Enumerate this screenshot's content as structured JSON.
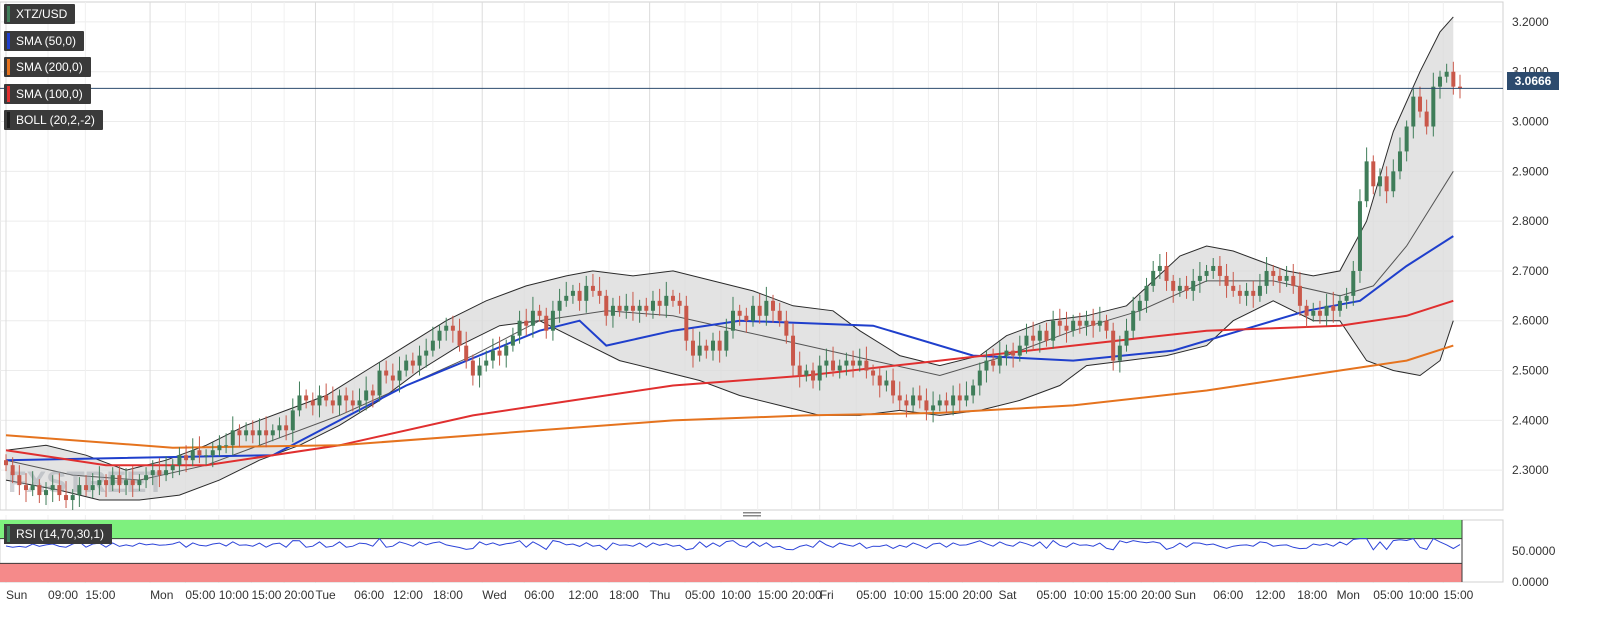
{
  "legend": [
    {
      "label": "XTZ/USD",
      "color": "#3f7d59"
    },
    {
      "label": "SMA (50,0)",
      "color": "#1f3fcc"
    },
    {
      "label": "SMA (200,0)",
      "color": "#e5731e"
    },
    {
      "label": "SMA (100,0)",
      "color": "#e02f2f"
    },
    {
      "label": "BOLL (20,2,-2)",
      "color": "#1a1a1a"
    }
  ],
  "rsi": {
    "label": "RSI (14,70,30,1)",
    "ticks": [
      "50.0000",
      "0.0000"
    ],
    "overbought": 70,
    "oversold": 30
  },
  "current_price": "3.0666",
  "chart_data": {
    "type": "candlestick",
    "symbol": "XTZ/USD",
    "ylim": [
      2.22,
      3.24
    ],
    "yticks": [
      "3.2000",
      "3.1000",
      "3.0000",
      "2.9000",
      "2.8000",
      "2.7000",
      "2.6000",
      "2.5000",
      "2.4000",
      "2.3000"
    ],
    "ytick_values": [
      3.2,
      3.1,
      3.0,
      2.9,
      2.8,
      2.7,
      2.6,
      2.5,
      2.4,
      2.3
    ],
    "x_labels": [
      "Sun",
      "09:00",
      "15:00",
      "Mon",
      "05:00",
      "10:00",
      "15:00",
      "20:00",
      "Tue",
      "06:00",
      "12:00",
      "18:00",
      "Wed",
      "06:00",
      "12:00",
      "18:00",
      "Thu",
      "05:00",
      "10:00",
      "15:00",
      "20:00",
      "Fri",
      "05:00",
      "10:00",
      "15:00",
      "20:00",
      "Sat",
      "05:00",
      "10:00",
      "15:00",
      "20:00",
      "Sun",
      "06:00",
      "12:00",
      "18:00",
      "Mon",
      "05:00",
      "10:00",
      "15:00"
    ],
    "x_label_pos": [
      0,
      6.3,
      11.9,
      21.6,
      26.9,
      31.9,
      36.8,
      41.7,
      46.4,
      52.2,
      58,
      64,
      71.4,
      77.7,
      84.3,
      90.4,
      96.5,
      101.8,
      107.2,
      112.7,
      117.8,
      122,
      127.5,
      133,
      138.3,
      143.4,
      148.8,
      154.5,
      160,
      165.1,
      170.2,
      175.2,
      181,
      187.3,
      193.6,
      199.5,
      205,
      210.3,
      215.5
    ],
    "closes": [
      2.31,
      2.29,
      2.27,
      2.26,
      2.27,
      2.25,
      2.26,
      2.27,
      2.25,
      2.24,
      2.25,
      2.27,
      2.26,
      2.27,
      2.28,
      2.27,
      2.29,
      2.27,
      2.28,
      2.27,
      2.28,
      2.29,
      2.3,
      2.29,
      2.3,
      2.31,
      2.33,
      2.32,
      2.34,
      2.33,
      2.33,
      2.34,
      2.35,
      2.35,
      2.38,
      2.37,
      2.38,
      2.37,
      2.38,
      2.37,
      2.38,
      2.39,
      2.38,
      2.42,
      2.45,
      2.44,
      2.43,
      2.45,
      2.44,
      2.43,
      2.45,
      2.44,
      2.43,
      2.44,
      2.46,
      2.45,
      2.5,
      2.49,
      2.48,
      2.5,
      2.52,
      2.51,
      2.53,
      2.54,
      2.56,
      2.58,
      2.59,
      2.58,
      2.55,
      2.52,
      2.49,
      2.51,
      2.52,
      2.54,
      2.53,
      2.55,
      2.57,
      2.6,
      2.59,
      2.62,
      2.61,
      2.58,
      2.62,
      2.64,
      2.65,
      2.66,
      2.64,
      2.67,
      2.66,
      2.65,
      2.61,
      2.63,
      2.62,
      2.63,
      2.62,
      2.63,
      2.62,
      2.64,
      2.63,
      2.65,
      2.64,
      2.63,
      2.56,
      2.53,
      2.55,
      2.54,
      2.56,
      2.54,
      2.58,
      2.62,
      2.61,
      2.6,
      2.63,
      2.61,
      2.64,
      2.62,
      2.6,
      2.57,
      2.51,
      2.49,
      2.5,
      2.48,
      2.51,
      2.52,
      2.5,
      2.51,
      2.52,
      2.51,
      2.52,
      2.5,
      2.49,
      2.47,
      2.48,
      2.45,
      2.44,
      2.43,
      2.45,
      2.44,
      2.42,
      2.43,
      2.44,
      2.43,
      2.45,
      2.44,
      2.45,
      2.47,
      2.5,
      2.52,
      2.51,
      2.53,
      2.54,
      2.53,
      2.55,
      2.57,
      2.56,
      2.58,
      2.56,
      2.6,
      2.59,
      2.58,
      2.6,
      2.59,
      2.6,
      2.59,
      2.6,
      2.58,
      2.52,
      2.55,
      2.58,
      2.62,
      2.64,
      2.67,
      2.7,
      2.71,
      2.68,
      2.66,
      2.67,
      2.66,
      2.68,
      2.69,
      2.7,
      2.71,
      2.69,
      2.67,
      2.66,
      2.65,
      2.66,
      2.65,
      2.67,
      2.7,
      2.69,
      2.68,
      2.69,
      2.67,
      2.63,
      2.61,
      2.62,
      2.61,
      2.63,
      2.62,
      2.64,
      2.65,
      2.7,
      2.84,
      2.92,
      2.87,
      2.89,
      2.86,
      2.9,
      2.94,
      2.99,
      3.05,
      3.02,
      2.99,
      3.07,
      3.09,
      3.1,
      3.07,
      3.0666
    ],
    "series": [
      {
        "name": "SMA (50,0)",
        "color": "#1f3fcc",
        "pts": [
          [
            0,
            2.32
          ],
          [
            40,
            2.33
          ],
          [
            60,
            2.47
          ],
          [
            80,
            2.58
          ],
          [
            86,
            2.6
          ],
          [
            90,
            2.55
          ],
          [
            100,
            2.58
          ],
          [
            110,
            2.6
          ],
          [
            130,
            2.59
          ],
          [
            145,
            2.53
          ],
          [
            160,
            2.52
          ],
          [
            175,
            2.54
          ],
          [
            185,
            2.58
          ],
          [
            195,
            2.62
          ],
          [
            203,
            2.64
          ],
          [
            210,
            2.71
          ],
          [
            217,
            2.77
          ]
        ]
      },
      {
        "name": "SMA (100,0)",
        "color": "#e02f2f",
        "pts": [
          [
            0,
            2.34
          ],
          [
            15,
            2.31
          ],
          [
            30,
            2.31
          ],
          [
            50,
            2.35
          ],
          [
            70,
            2.41
          ],
          [
            85,
            2.44
          ],
          [
            100,
            2.47
          ],
          [
            120,
            2.49
          ],
          [
            140,
            2.52
          ],
          [
            160,
            2.55
          ],
          [
            180,
            2.58
          ],
          [
            200,
            2.59
          ],
          [
            210,
            2.61
          ],
          [
            217,
            2.64
          ]
        ]
      },
      {
        "name": "SMA (200,0)",
        "color": "#e5731e",
        "pts": [
          [
            0,
            2.37
          ],
          [
            25,
            2.345
          ],
          [
            50,
            2.35
          ],
          [
            80,
            2.38
          ],
          [
            100,
            2.4
          ],
          [
            120,
            2.41
          ],
          [
            140,
            2.415
          ],
          [
            160,
            2.43
          ],
          [
            180,
            2.46
          ],
          [
            200,
            2.5
          ],
          [
            210,
            2.52
          ],
          [
            217,
            2.55
          ]
        ]
      },
      {
        "name": "BOLL (20,2,-2)",
        "color": "#2a2a2a",
        "upper": [
          [
            0,
            2.34
          ],
          [
            6,
            2.35
          ],
          [
            12,
            2.33
          ],
          [
            18,
            2.3
          ],
          [
            24,
            2.32
          ],
          [
            30,
            2.35
          ],
          [
            36,
            2.39
          ],
          [
            42,
            2.42
          ],
          [
            48,
            2.45
          ],
          [
            54,
            2.5
          ],
          [
            60,
            2.55
          ],
          [
            66,
            2.6
          ],
          [
            72,
            2.64
          ],
          [
            78,
            2.67
          ],
          [
            84,
            2.69
          ],
          [
            88,
            2.7
          ],
          [
            94,
            2.69
          ],
          [
            100,
            2.7
          ],
          [
            106,
            2.68
          ],
          [
            112,
            2.66
          ],
          [
            118,
            2.63
          ],
          [
            124,
            2.62
          ],
          [
            128,
            2.58
          ],
          [
            134,
            2.53
          ],
          [
            140,
            2.51
          ],
          [
            146,
            2.53
          ],
          [
            150,
            2.57
          ],
          [
            156,
            2.6
          ],
          [
            162,
            2.61
          ],
          [
            168,
            2.63
          ],
          [
            172,
            2.68
          ],
          [
            176,
            2.73
          ],
          [
            180,
            2.75
          ],
          [
            184,
            2.74
          ],
          [
            188,
            2.72
          ],
          [
            192,
            2.7
          ],
          [
            196,
            2.69
          ],
          [
            200,
            2.7
          ],
          [
            204,
            2.8
          ],
          [
            208,
            2.98
          ],
          [
            212,
            3.1
          ],
          [
            215,
            3.18
          ],
          [
            217,
            3.21
          ]
        ],
        "mid": [
          [
            0,
            2.32
          ],
          [
            10,
            2.29
          ],
          [
            20,
            2.28
          ],
          [
            30,
            2.31
          ],
          [
            40,
            2.36
          ],
          [
            50,
            2.41
          ],
          [
            60,
            2.47
          ],
          [
            70,
            2.53
          ],
          [
            80,
            2.6
          ],
          [
            90,
            2.62
          ],
          [
            100,
            2.61
          ],
          [
            110,
            2.58
          ],
          [
            120,
            2.55
          ],
          [
            130,
            2.52
          ],
          [
            140,
            2.49
          ],
          [
            150,
            2.53
          ],
          [
            160,
            2.58
          ],
          [
            170,
            2.62
          ],
          [
            180,
            2.68
          ],
          [
            190,
            2.68
          ],
          [
            200,
            2.65
          ],
          [
            205,
            2.67
          ],
          [
            210,
            2.75
          ],
          [
            217,
            2.9
          ]
        ],
        "lower": [
          [
            0,
            2.28
          ],
          [
            8,
            2.26
          ],
          [
            14,
            2.24
          ],
          [
            20,
            2.24
          ],
          [
            26,
            2.25
          ],
          [
            32,
            2.28
          ],
          [
            38,
            2.32
          ],
          [
            44,
            2.35
          ],
          [
            50,
            2.39
          ],
          [
            56,
            2.44
          ],
          [
            62,
            2.5
          ],
          [
            68,
            2.55
          ],
          [
            74,
            2.59
          ],
          [
            80,
            2.6
          ],
          [
            86,
            2.56
          ],
          [
            92,
            2.52
          ],
          [
            98,
            2.5
          ],
          [
            104,
            2.48
          ],
          [
            110,
            2.45
          ],
          [
            116,
            2.43
          ],
          [
            122,
            2.41
          ],
          [
            128,
            2.41
          ],
          [
            134,
            2.42
          ],
          [
            140,
            2.41
          ],
          [
            146,
            2.42
          ],
          [
            152,
            2.44
          ],
          [
            158,
            2.47
          ],
          [
            162,
            2.51
          ],
          [
            168,
            2.52
          ],
          [
            174,
            2.53
          ],
          [
            180,
            2.55
          ],
          [
            184,
            2.6
          ],
          [
            190,
            2.64
          ],
          [
            196,
            2.6
          ],
          [
            200,
            2.6
          ],
          [
            204,
            2.52
          ],
          [
            208,
            2.5
          ],
          [
            212,
            2.49
          ],
          [
            215,
            2.52
          ],
          [
            217,
            2.6
          ]
        ]
      }
    ]
  }
}
